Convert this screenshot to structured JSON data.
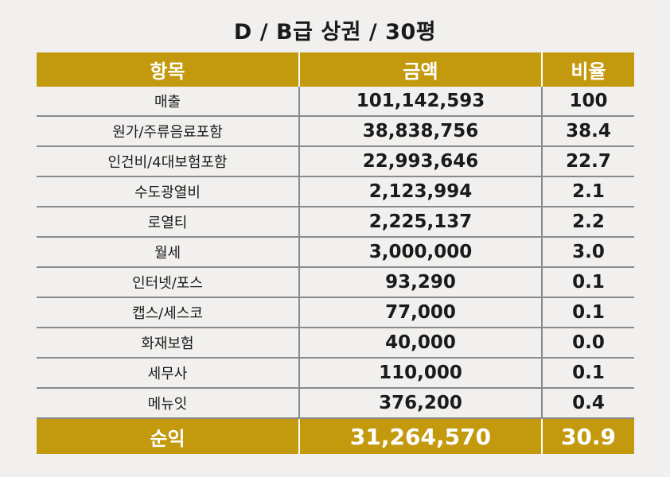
{
  "title": "D / B급 상권 / 30평",
  "header": {
    "item": "항목",
    "amount": "금액",
    "ratio": "비율"
  },
  "rows": [
    {
      "item": "매출",
      "amount": "101,142,593",
      "ratio": "100"
    },
    {
      "item": "원가/주류음료포함",
      "amount": "38,838,756",
      "ratio": "38.4"
    },
    {
      "item": "인건비/4대보험포함",
      "amount": "22,993,646",
      "ratio": "22.7"
    },
    {
      "item": "수도광열비",
      "amount": "2,123,994",
      "ratio": "2.1"
    },
    {
      "item": "로열티",
      "amount": "2,225,137",
      "ratio": "2.2"
    },
    {
      "item": "월세",
      "amount": "3,000,000",
      "ratio": "3.0"
    },
    {
      "item": "인터넷/포스",
      "amount": "93,290",
      "ratio": "0.1"
    },
    {
      "item": "캡스/세스코",
      "amount": "77,000",
      "ratio": "0.1"
    },
    {
      "item": "화재보험",
      "amount": "40,000",
      "ratio": "0.0"
    },
    {
      "item": "세무사",
      "amount": "110,000",
      "ratio": "0.1"
    },
    {
      "item": "메뉴잇",
      "amount": "376,200",
      "ratio": "0.4"
    }
  ],
  "footer": {
    "item": "순익",
    "amount": "31,264,570",
    "ratio": "30.9"
  },
  "colors": {
    "accent": "#c3990e",
    "background": "#f1f0ee",
    "rule": "#8a8a8a"
  }
}
